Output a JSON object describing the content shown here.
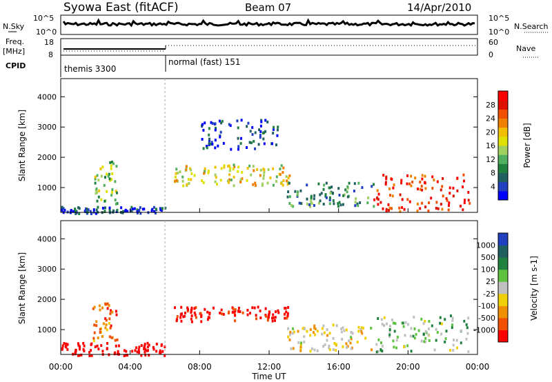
{
  "header": {
    "station": "Syowa East (fitACF)",
    "beam": "Beam 07",
    "date": "14/Apr/2010"
  },
  "noise_panel": {
    "left_label": "N.Sky",
    "right_label": "N.Search",
    "tick_top": "10^5",
    "tick_bottom": "10^0"
  },
  "freq_panel": {
    "left_label_1": "Freq.",
    "left_label_2": "[MHz]",
    "right_label": "Nave",
    "left_ticks": [
      "18",
      "8"
    ],
    "right_ticks": [
      "60",
      "0"
    ]
  },
  "cpid_panel": {
    "label": "CPID",
    "modes": [
      {
        "name": "themis 3300",
        "start_hour": 0
      },
      {
        "name": "normal (fast) 151",
        "start_hour": 6
      }
    ]
  },
  "x_axis": {
    "label": "Time UT",
    "ticks": [
      "00:00",
      "04:00",
      "08:00",
      "12:00",
      "16:00",
      "20:00",
      "00:00"
    ],
    "range_hours": [
      0,
      24
    ]
  },
  "chart_data": [
    {
      "type": "heatmap",
      "name": "power",
      "ylabel": "Slant Range [km]",
      "yticks": [
        1000,
        2000,
        3000,
        4000
      ],
      "ylim": [
        180,
        4600
      ],
      "colorbar_label": "Power [dB]",
      "colorbar_ticks": [
        "4",
        "8",
        "12",
        "16",
        "20",
        "24",
        "28"
      ],
      "colorbar_colors": [
        "#0000ff",
        "#2040c0",
        "#206060",
        "#208040",
        "#50b060",
        "#a0d060",
        "#e0e000",
        "#f0c000",
        "#f08000",
        "#f05000",
        "#e01000",
        "#ff0000"
      ],
      "regions": [
        {
          "t": [
            0,
            6
          ],
          "r": [
            180,
            400
          ],
          "level": 0.15
        },
        {
          "t": [
            1.8,
            3.2
          ],
          "r": [
            500,
            1900
          ],
          "level": 0.45
        },
        {
          "t": [
            6.5,
            13.2
          ],
          "r": [
            1100,
            1800
          ],
          "level": 0.55
        },
        {
          "t": [
            8,
            12.5
          ],
          "r": [
            2300,
            3300
          ],
          "level": 0.15
        },
        {
          "t": [
            13,
            18
          ],
          "r": [
            400,
            1200
          ],
          "level": 0.3
        },
        {
          "t": [
            18,
            23.5
          ],
          "r": [
            250,
            1500
          ],
          "level": 0.85
        }
      ]
    },
    {
      "type": "heatmap",
      "name": "velocity",
      "ylabel": "Slant Range [km]",
      "yticks": [
        1000,
        2000,
        3000,
        4000
      ],
      "ylim": [
        180,
        4600
      ],
      "colorbar_label": "Velocity [m s-1]",
      "colorbar_ticks": [
        "1000",
        "500",
        "100",
        "25",
        "-25",
        "-100",
        "-500",
        "-1000"
      ],
      "colorbar_colors": [
        "#2040c0",
        "#206060",
        "#208040",
        "#60c040",
        "#c0c0c0",
        "#f0d000",
        "#f09000",
        "#f05000",
        "#ff0000"
      ],
      "regions": [
        {
          "t": [
            0,
            6
          ],
          "r": [
            180,
            600
          ],
          "level": -0.2
        },
        {
          "t": [
            1.8,
            3.2
          ],
          "r": [
            500,
            1900
          ],
          "level": 0.2
        },
        {
          "t": [
            6.5,
            13.2
          ],
          "r": [
            1300,
            1800
          ],
          "level": 0.0
        },
        {
          "t": [
            13,
            18
          ],
          "r": [
            300,
            1200
          ],
          "level": 0.4
        },
        {
          "t": [
            18,
            23.5
          ],
          "r": [
            300,
            1500
          ],
          "level": 0.6
        }
      ]
    }
  ]
}
